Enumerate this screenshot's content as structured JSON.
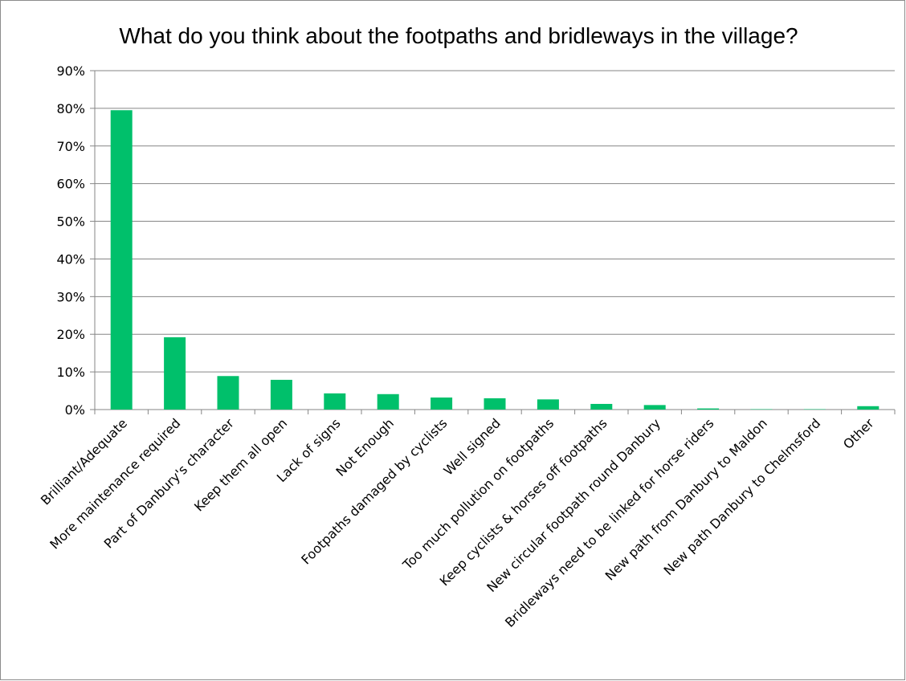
{
  "chart_data": {
    "type": "bar",
    "title": "What do you think about the footpaths and bridleways in the village?",
    "xlabel": "",
    "ylabel": "",
    "categories": [
      "Brilliant/Adequate",
      "More maintenance required",
      "Part of Danbury's character",
      "Keep them all open",
      "Lack of signs",
      "Not Enough",
      "Footpaths damaged by cyclists",
      "Well signed",
      "Too much pollution on footpaths",
      "Keep cyclists & horses off footpaths",
      "New circular footpath round Danbury",
      "Bridleways need to be linked for horse riders",
      "New path from Danbury to Maldon",
      "New path Danbury to Chelmsford",
      "Other"
    ],
    "values": [
      79.5,
      19.2,
      8.9,
      7.9,
      4.3,
      4.1,
      3.2,
      3.0,
      2.7,
      1.5,
      1.2,
      0.3,
      0.1,
      0.1,
      0.9
    ],
    "ylim": [
      0,
      90
    ],
    "yticks": [
      0,
      10,
      20,
      30,
      40,
      50,
      60,
      70,
      80,
      90
    ],
    "tick_format": "percent",
    "grid": true,
    "legend": "none",
    "bar_color": "#00c06b",
    "gridline_color": "#868686"
  }
}
